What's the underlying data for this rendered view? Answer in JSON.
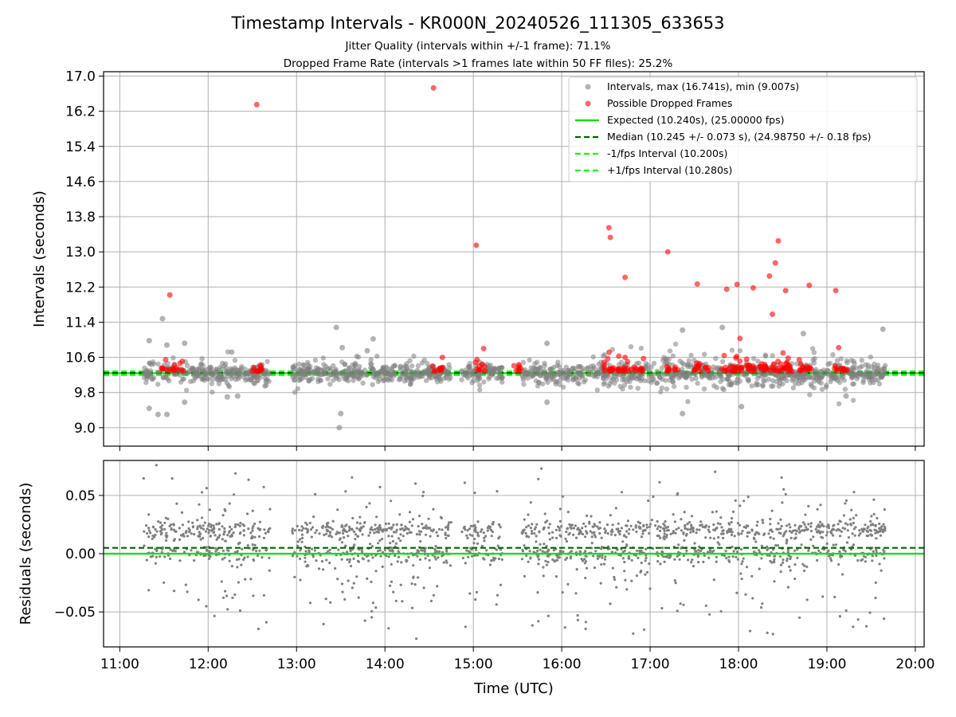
{
  "figure": {
    "title": "Timestamp Intervals - KR000N_20240526_111305_633653",
    "subtitle_1": "Jitter Quality (intervals within +/-1 frame): 71.1%",
    "subtitle_2": "Dropped Frame Rate (intervals >1 frames late within 50 FF files): 25.2%"
  },
  "colors": {
    "intervals": "#808080",
    "dropped": "#ff0000",
    "expected": "#00e000",
    "median": "#006400",
    "interval_bounds": "#00ff00",
    "grid": "#b0b0b0"
  },
  "chart_data": [
    {
      "type": "scatter",
      "panel": "intervals",
      "ylabel": "Intervals (seconds)",
      "xlim": [
        "10:49",
        "20:06"
      ],
      "ylim": [
        8.58,
        17.1
      ],
      "y_ticks": [
        "9.0",
        "9.8",
        "10.6",
        "11.4",
        "12.2",
        "13.0",
        "13.8",
        "14.6",
        "15.4",
        "16.2",
        "17.0"
      ],
      "grid": true,
      "legend_position": "upper right",
      "legend": [
        {
          "label": "Intervals, max (16.741s), min (9.007s)",
          "marker": "dot",
          "color": "#808080"
        },
        {
          "label": "Possible Dropped Frames",
          "marker": "dot",
          "color": "#ff0000"
        },
        {
          "label": "Expected (10.240s), (25.00000 fps)",
          "marker": "solid",
          "color": "#00e000"
        },
        {
          "label": "Median (10.245 +/- 0.073 s), (24.98750 +/- 0.18 fps)",
          "marker": "dashed",
          "color": "#006400"
        },
        {
          "label": "-1/fps Interval (10.200s)",
          "marker": "dashed",
          "color": "#00ff00"
        },
        {
          "label": "+1/fps Interval (10.280s)",
          "marker": "dashed",
          "color": "#00ff00"
        }
      ],
      "reference_lines": {
        "expected": 10.24,
        "median": 10.245,
        "minus_1fps": 10.2,
        "plus_1fps": 10.28
      },
      "time_range": [
        "11:16",
        "19:40"
      ],
      "outliers_gray": [
        {
          "x": "11:20",
          "y": 10.98
        },
        {
          "x": "11:20",
          "y": 9.44
        },
        {
          "x": "11:26",
          "y": 9.3
        },
        {
          "x": "11:29",
          "y": 11.48
        },
        {
          "x": "11:32",
          "y": 9.3
        },
        {
          "x": "11:32",
          "y": 10.88
        },
        {
          "x": "11:44",
          "y": 10.92
        },
        {
          "x": "11:44",
          "y": 9.58
        },
        {
          "x": "12:13",
          "y": 9.7
        },
        {
          "x": "12:16",
          "y": 10.72
        },
        {
          "x": "12:20",
          "y": 9.72
        },
        {
          "x": "13:27",
          "y": 11.28
        },
        {
          "x": "13:29",
          "y": 9.0
        },
        {
          "x": "13:30",
          "y": 9.32
        },
        {
          "x": "13:31",
          "y": 10.82
        },
        {
          "x": "13:48",
          "y": 10.75
        },
        {
          "x": "13:52",
          "y": 11.02
        },
        {
          "x": "15:50",
          "y": 10.92
        },
        {
          "x": "15:50",
          "y": 9.58
        },
        {
          "x": "17:22",
          "y": 11.22
        },
        {
          "x": "17:22",
          "y": 9.32
        },
        {
          "x": "17:49",
          "y": 11.28
        },
        {
          "x": "18:02",
          "y": 9.48
        },
        {
          "x": "18:44",
          "y": 11.14
        },
        {
          "x": "19:13",
          "y": 9.72
        },
        {
          "x": "19:38",
          "y": 11.24
        }
      ],
      "dropped_frames": [
        {
          "x": "11:34",
          "y": 12.02
        },
        {
          "x": "12:33",
          "y": 16.35
        },
        {
          "x": "14:33",
          "y": 16.73
        },
        {
          "x": "15:02",
          "y": 13.15
        },
        {
          "x": "15:07",
          "y": 10.8
        },
        {
          "x": "14:39",
          "y": 10.6
        },
        {
          "x": "16:32",
          "y": 13.55
        },
        {
          "x": "16:33",
          "y": 13.33
        },
        {
          "x": "16:43",
          "y": 12.42
        },
        {
          "x": "17:12",
          "y": 13.0
        },
        {
          "x": "17:32",
          "y": 12.27
        },
        {
          "x": "17:52",
          "y": 12.15
        },
        {
          "x": "17:59",
          "y": 12.26
        },
        {
          "x": "18:01",
          "y": 11.03
        },
        {
          "x": "18:10",
          "y": 12.18
        },
        {
          "x": "18:21",
          "y": 12.45
        },
        {
          "x": "18:23",
          "y": 11.58
        },
        {
          "x": "18:25",
          "y": 12.75
        },
        {
          "x": "18:27",
          "y": 13.25
        },
        {
          "x": "18:32",
          "y": 12.12
        },
        {
          "x": "18:48",
          "y": 12.24
        },
        {
          "x": "19:06",
          "y": 12.12
        },
        {
          "x": "19:08",
          "y": 10.82
        }
      ]
    },
    {
      "type": "scatter",
      "panel": "residuals",
      "xlabel": "Time (UTC)",
      "ylabel": "Residuals (seconds)",
      "xlim": [
        "10:49",
        "20:06"
      ],
      "ylim": [
        -0.08,
        0.08
      ],
      "y_ticks": [
        "−0.05",
        "0.00",
        "0.05"
      ],
      "x_ticks": [
        "11:00",
        "12:00",
        "13:00",
        "14:00",
        "15:00",
        "16:00",
        "17:00",
        "18:00",
        "19:00",
        "20:00"
      ],
      "grid": true,
      "reference_lines": {
        "zero": 0.0,
        "median_offset": 0.005
      }
    }
  ]
}
